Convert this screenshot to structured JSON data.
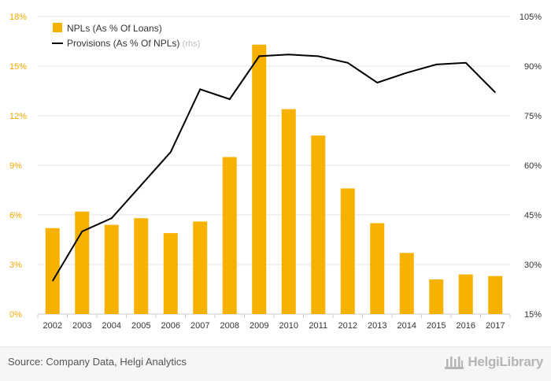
{
  "chart_data": {
    "type": "bar",
    "categories": [
      "2002",
      "2003",
      "2004",
      "2005",
      "2006",
      "2007",
      "2008",
      "2009",
      "2010",
      "2011",
      "2012",
      "2013",
      "2014",
      "2015",
      "2016",
      "2017"
    ],
    "series": [
      {
        "name": "NPLs (As % Of Loans)",
        "type": "bar",
        "axis": "left",
        "color": "#F7B200",
        "values": [
          5.2,
          6.2,
          5.4,
          5.8,
          4.9,
          5.6,
          9.5,
          16.3,
          12.4,
          10.8,
          7.6,
          5.5,
          3.7,
          2.1,
          2.4,
          2.3
        ]
      },
      {
        "name": "Provisions (As % Of NPLs)",
        "name_suffix": "(rhs)",
        "type": "line",
        "axis": "right",
        "color": "#000000",
        "values": [
          25.0,
          40.0,
          44.0,
          54.0,
          64.0,
          83.0,
          80.0,
          93.0,
          93.5,
          93.0,
          91.0,
          85.0,
          88.0,
          90.5,
          91.0,
          82.0
        ]
      }
    ],
    "y_left": {
      "min": 0,
      "max": 18,
      "ticks": [
        "0%",
        "3%",
        "6%",
        "9%",
        "12%",
        "15%",
        "18%"
      ],
      "tick_color": "#F0A800"
    },
    "y_right": {
      "min": 15,
      "max": 105,
      "ticks": [
        "15%",
        "30%",
        "45%",
        "60%",
        "75%",
        "90%",
        "105%"
      ],
      "tick_color": "#333333"
    },
    "grid": true,
    "legend_position": "top-left"
  },
  "footer": {
    "source": "Source: Company Data, Helgi Analytics",
    "brand_name": "HelgiLibrary",
    "brand_icon": "library-columns-icon"
  }
}
